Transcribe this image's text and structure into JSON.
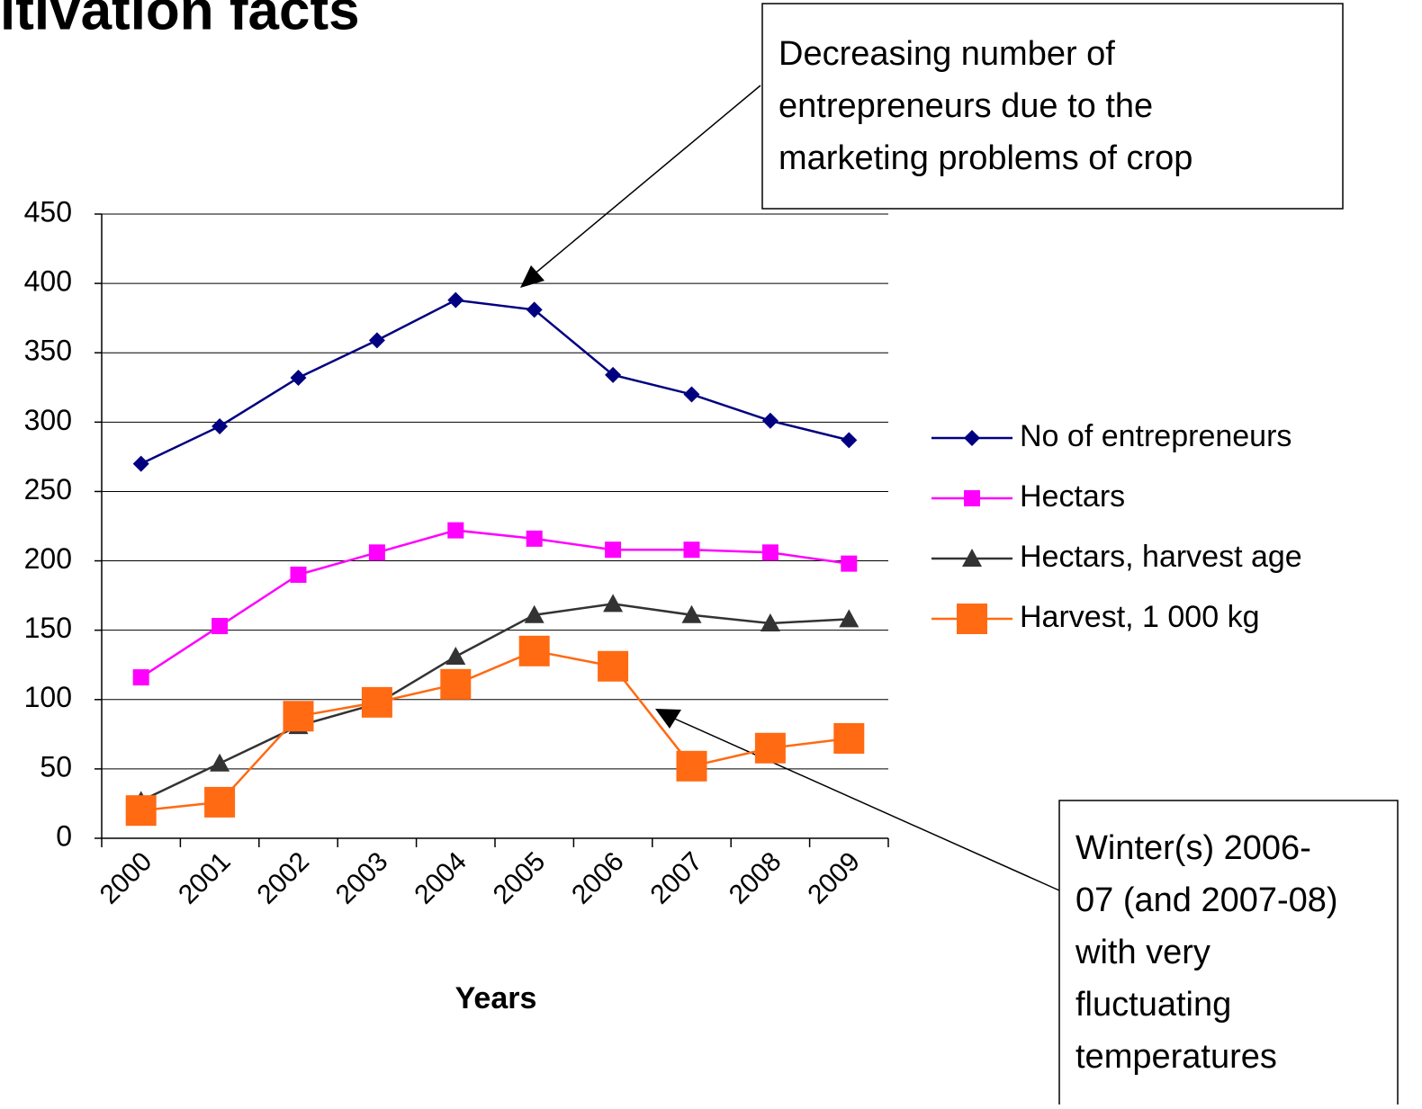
{
  "chart_data": {
    "type": "line",
    "title": "ltivation facts",
    "x_label": "Years",
    "categories": [
      "2000",
      "2001",
      "2002",
      "2003",
      "2004",
      "2005",
      "2006",
      "2007",
      "2008",
      "2009"
    ],
    "series": [
      {
        "name": "No of entrepreneurs",
        "color": "#000080",
        "marker": "diamond",
        "values": [
          270,
          297,
          332,
          359,
          388,
          381,
          334,
          320,
          301,
          287
        ]
      },
      {
        "name": "Hectars",
        "color": "#ff00ff",
        "marker": "square",
        "values": [
          116,
          153,
          190,
          206,
          222,
          216,
          208,
          208,
          206,
          198
        ]
      },
      {
        "name": "Hectars, harvest age",
        "color": "#333333",
        "marker": "triangle",
        "values": [
          27,
          54,
          81,
          97,
          131,
          161,
          169,
          161,
          155,
          158
        ]
      },
      {
        "name": "Harvest, 1 000 kg",
        "color": "#ff6a13",
        "marker": "big-square",
        "values": [
          20,
          26,
          88,
          98,
          111,
          135,
          124,
          52,
          65,
          72
        ]
      }
    ],
    "ylim": [
      0,
      450
    ],
    "yticks": [
      0,
      50,
      100,
      150,
      200,
      250,
      300,
      350,
      400,
      450
    ],
    "grid": true,
    "legend": "right",
    "annotations": [
      {
        "lines": [
          "Decreasing number of",
          "entrepreneurs due to the",
          "marketing problems of crop"
        ]
      },
      {
        "lines": [
          "Winter(s) 2006-",
          "07 (and 2007-08)",
          "with very",
          "fluctuating",
          "temperatures"
        ]
      }
    ]
  }
}
